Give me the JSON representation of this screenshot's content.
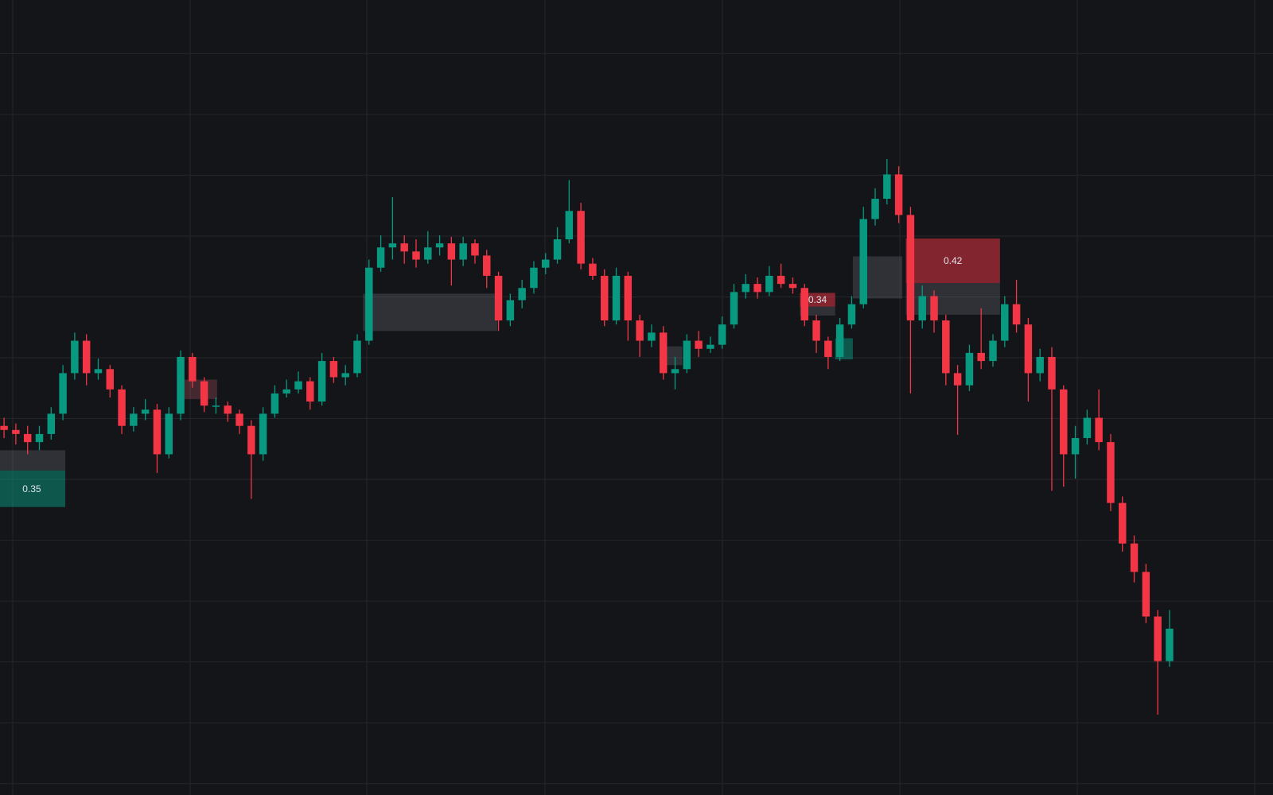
{
  "chart_data": {
    "type": "candlestick",
    "open": [
      455,
      450,
      445,
      435,
      445,
      470,
      520,
      560,
      520,
      525,
      500,
      455,
      470,
      475,
      420,
      470,
      540,
      510,
      480,
      480,
      470,
      455,
      420,
      470,
      495,
      500,
      510,
      485,
      535,
      515,
      520,
      560,
      650,
      675,
      680,
      670,
      660,
      675,
      680,
      660,
      680,
      665,
      640,
      585,
      610,
      625,
      650,
      660,
      685,
      720,
      655,
      640,
      585,
      640,
      585,
      560,
      570,
      520,
      525,
      560,
      550,
      555,
      580,
      620,
      630,
      620,
      640,
      630,
      625,
      585,
      560,
      540,
      580,
      605,
      710,
      735,
      765,
      715,
      585,
      615,
      585,
      520,
      505,
      545,
      535,
      560,
      605,
      580,
      520,
      540,
      500,
      420,
      440,
      465,
      435,
      360,
      310,
      275,
      220,
      165
    ],
    "high": [
      465,
      458,
      455,
      455,
      478,
      530,
      570,
      568,
      538,
      530,
      505,
      478,
      488,
      482,
      478,
      548,
      545,
      515,
      490,
      485,
      475,
      462,
      478,
      505,
      512,
      522,
      515,
      545,
      540,
      530,
      568,
      660,
      690,
      737,
      690,
      685,
      695,
      690,
      688,
      688,
      685,
      672,
      645,
      618,
      635,
      658,
      668,
      700,
      758,
      730,
      662,
      648,
      650,
      645,
      592,
      580,
      578,
      540,
      568,
      572,
      565,
      590,
      630,
      642,
      638,
      652,
      655,
      638,
      630,
      592,
      565,
      588,
      615,
      725,
      748,
      784,
      775,
      725,
      628,
      622,
      592,
      530,
      555,
      600,
      568,
      615,
      635,
      588,
      550,
      552,
      505,
      455,
      475,
      500,
      445,
      368,
      320,
      285,
      228,
      228
    ],
    "low": [
      440,
      432,
      420,
      425,
      438,
      462,
      512,
      505,
      512,
      490,
      445,
      448,
      462,
      397,
      415,
      462,
      502,
      472,
      470,
      460,
      445,
      365,
      412,
      465,
      490,
      495,
      475,
      480,
      508,
      505,
      515,
      555,
      645,
      660,
      655,
      650,
      655,
      665,
      628,
      652,
      655,
      625,
      572,
      578,
      600,
      618,
      642,
      655,
      680,
      648,
      635,
      578,
      580,
      560,
      540,
      552,
      512,
      500,
      520,
      540,
      545,
      550,
      575,
      612,
      612,
      615,
      625,
      618,
      578,
      545,
      525,
      535,
      575,
      600,
      702,
      728,
      705,
      495,
      575,
      570,
      505,
      444,
      498,
      525,
      528,
      552,
      570,
      485,
      510,
      375,
      380,
      390,
      432,
      425,
      350,
      300,
      262,
      212,
      99,
      158
    ],
    "close": [
      450,
      445,
      435,
      445,
      470,
      520,
      560,
      520,
      525,
      500,
      455,
      470,
      475,
      420,
      470,
      540,
      510,
      480,
      480,
      470,
      455,
      420,
      470,
      495,
      500,
      510,
      485,
      535,
      515,
      520,
      560,
      650,
      675,
      680,
      670,
      660,
      675,
      680,
      660,
      680,
      665,
      640,
      585,
      610,
      625,
      650,
      660,
      685,
      720,
      655,
      640,
      585,
      640,
      585,
      560,
      570,
      520,
      525,
      560,
      550,
      555,
      580,
      620,
      630,
      620,
      640,
      630,
      625,
      585,
      560,
      540,
      580,
      605,
      710,
      735,
      765,
      715,
      585,
      615,
      585,
      520,
      505,
      545,
      535,
      560,
      605,
      580,
      520,
      540,
      500,
      420,
      440,
      465,
      435,
      360,
      310,
      275,
      220,
      165,
      205
    ],
    "up_color": "#089981",
    "down_color": "#f23645",
    "xlim": [
      -0.345,
      107.79
    ],
    "ylim": [
      0,
      980
    ],
    "yticks": [
      914,
      839,
      764,
      689,
      614,
      539,
      464,
      389,
      314,
      239,
      164,
      89,
      14
    ],
    "grid": true,
    "zones": [
      {
        "x0": -0.5,
        "x1": 5.2,
        "top": 425,
        "bottom": 400,
        "color": "rgba(120,123,134,0.28)"
      },
      {
        "x0": -0.5,
        "x1": 5.2,
        "top": 400,
        "bottom": 355,
        "color": "rgba(8,153,129,0.5)",
        "label": 0.35
      },
      {
        "x0": 15,
        "x1": 18.1,
        "top": 512,
        "bottom": 488,
        "color": "rgba(180,90,100,0.3)"
      },
      {
        "x0": 30.5,
        "x1": 41.9,
        "top": 618,
        "bottom": 572,
        "color": "rgba(120,123,134,0.28)"
      },
      {
        "x0": 55.7,
        "x1": 57.6,
        "top": 553,
        "bottom": 530,
        "color": "rgba(120,123,134,0.28)"
      },
      {
        "x0": 67.6,
        "x1": 70.6,
        "top": 619,
        "bottom": 602,
        "color": "rgba(242,54,69,0.5)",
        "label": 0.34
      },
      {
        "x0": 67.6,
        "x1": 70.6,
        "top": 602,
        "bottom": 591,
        "color": "rgba(120,123,134,0.28)"
      },
      {
        "x0": 70.6,
        "x1": 72.1,
        "top": 563,
        "bottom": 537,
        "color": "rgba(8,153,129,0.5)"
      },
      {
        "x0": 72.1,
        "x1": 76.3,
        "top": 664,
        "bottom": 612,
        "color": "rgba(120,123,134,0.28)"
      },
      {
        "x0": 76.6,
        "x1": 84.6,
        "top": 686,
        "bottom": 631,
        "color": "rgba(242,54,69,0.5)",
        "label": 0.42
      },
      {
        "x0": 76.6,
        "x1": 84.6,
        "top": 631,
        "bottom": 592,
        "color": "rgba(120,123,134,0.28)"
      }
    ]
  }
}
